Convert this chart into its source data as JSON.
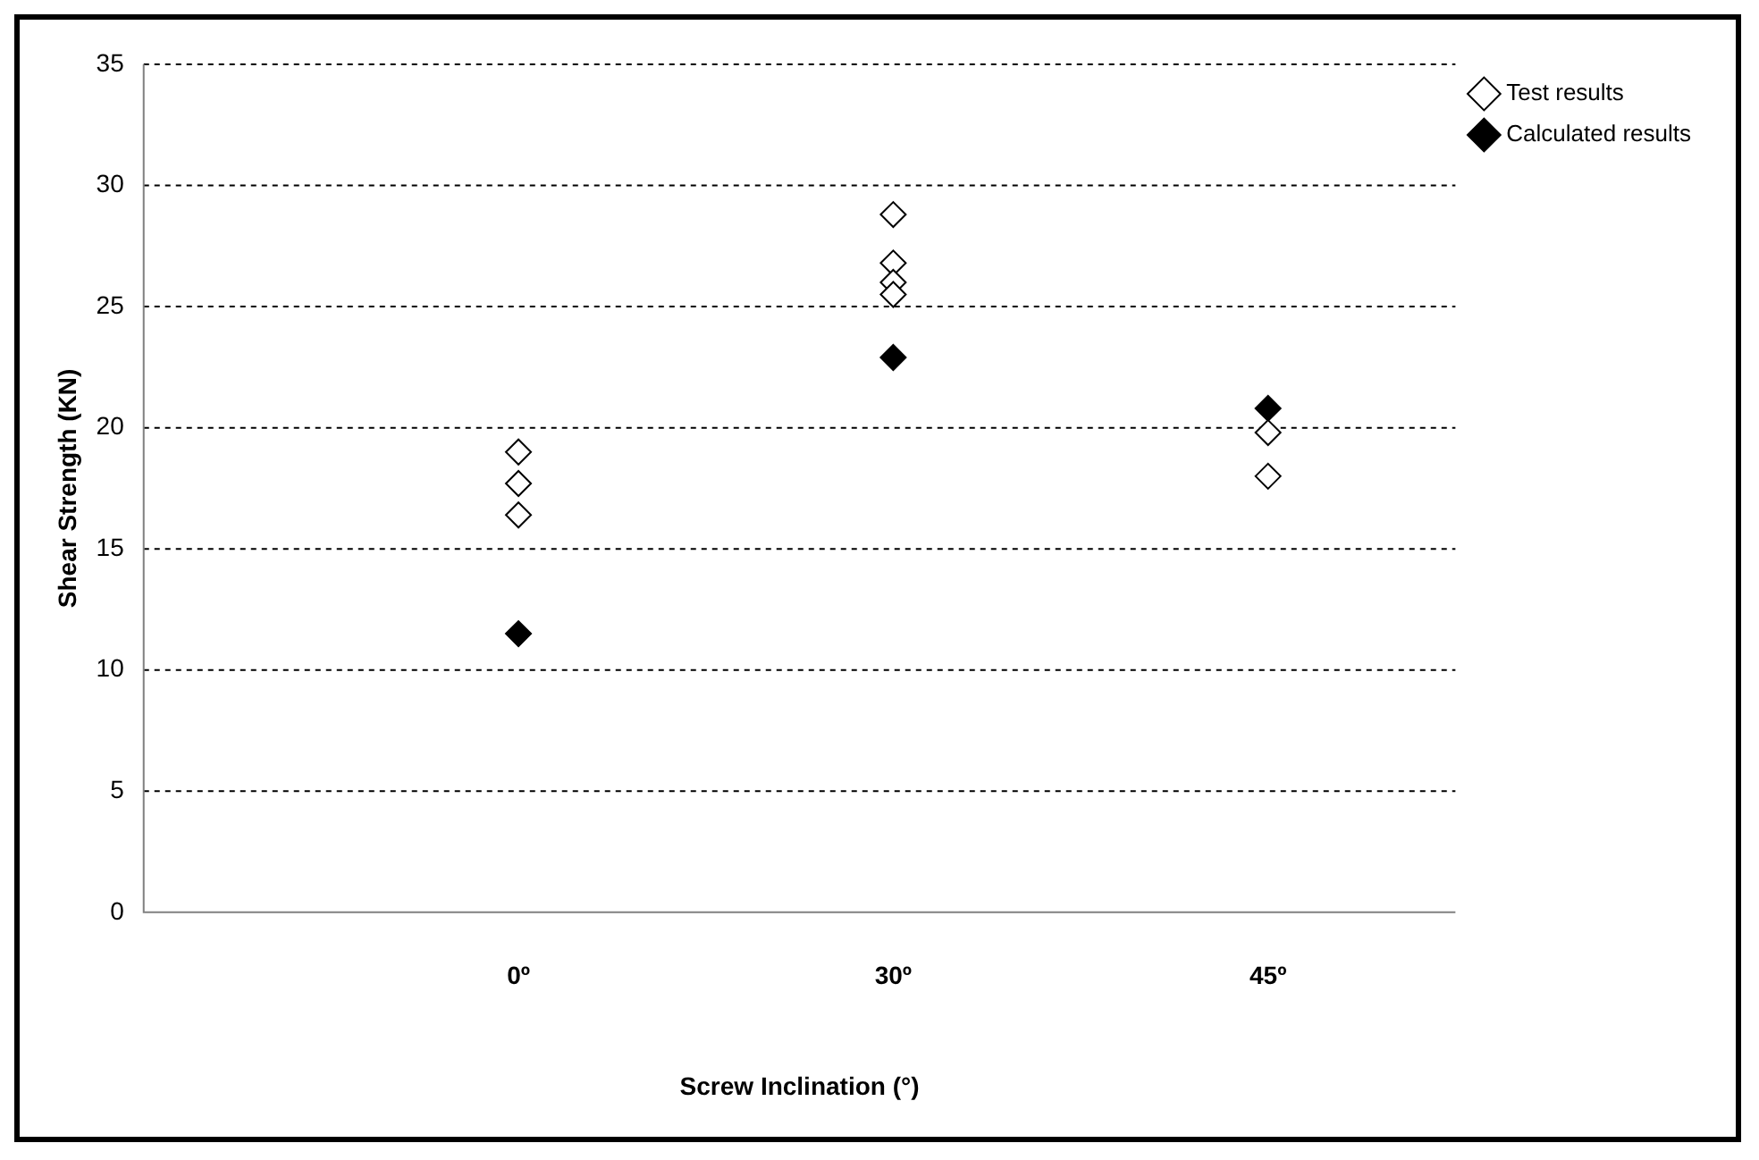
{
  "chart_data": {
    "type": "scatter",
    "xlabel": "Screw Inclination (°)",
    "ylabel": "Shear Strength (KN)",
    "categories": [
      "0º",
      "30º",
      "45º"
    ],
    "ylim": [
      0,
      35
    ],
    "yticks": [
      0,
      5,
      10,
      15,
      20,
      25,
      30,
      35
    ],
    "grid": "y",
    "legend": "top right",
    "marker": "diamond",
    "series": [
      {
        "name": "Test results",
        "color": "#ffffff",
        "x": [
          "0º",
          "0º",
          "0º",
          "30º",
          "30º",
          "30º",
          "30º",
          "45º",
          "45º"
        ],
        "values": [
          19.0,
          17.7,
          16.4,
          28.8,
          26.8,
          26.0,
          25.5,
          19.8,
          18.0
        ]
      },
      {
        "name": "Calculated results",
        "color": "#000000",
        "x": [
          "0º",
          "30º",
          "45º"
        ],
        "values": [
          11.5,
          22.9,
          20.8
        ]
      }
    ]
  }
}
